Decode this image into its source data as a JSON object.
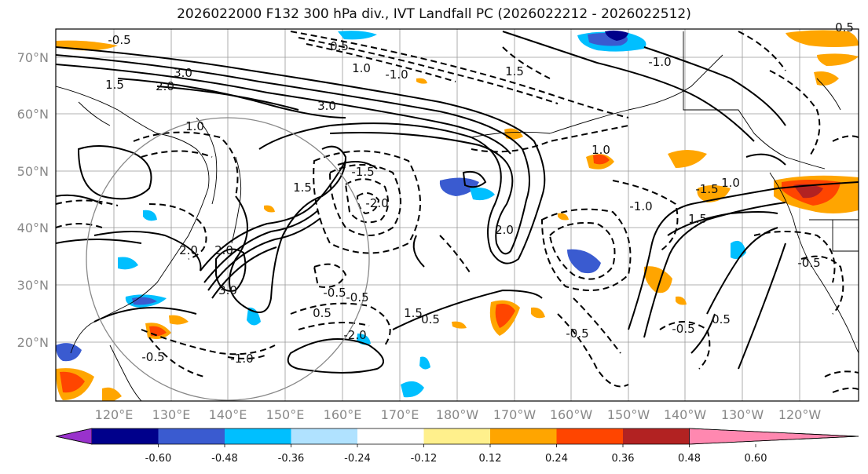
{
  "title": "2026022000 F132 300 hPa div., IVT Landfall PC (2026022212 - 2026022512)",
  "map": {
    "lat_labels": [
      "70°N",
      "60°N",
      "50°N",
      "40°N",
      "30°N",
      "20°N"
    ],
    "lon_labels": [
      "120°E",
      "130°E",
      "140°E",
      "150°E",
      "160°E",
      "170°E",
      "180°W",
      "170°W",
      "160°W",
      "150°W",
      "140°W",
      "130°W",
      "120°W"
    ],
    "contour_labels": [
      "-0.5",
      "0.5",
      "1.5",
      "2.0",
      "3.0",
      "1.0",
      "-1.0",
      "1.5",
      "3.0",
      "-1.5",
      "-2.0",
      "-0.5",
      "0.5",
      "2.0",
      "-0.5",
      "-1.0",
      "1.0",
      "3.0",
      "-2.0",
      "-1.0",
      "-0.5",
      "1.5",
      "1.0",
      "-1.5",
      "1.5",
      "2.0",
      "-0.5",
      "0.5",
      "-0.5",
      "1.0",
      "2.0",
      "-1.0",
      "0.5",
      "-0.5",
      "1.5",
      "0.5"
    ]
  },
  "colorbar": {
    "colors": [
      "#9932cc",
      "#00008b",
      "#3a5bd0",
      "#00bfff",
      "#b0e2ff",
      "#ffffff",
      "#fff08c",
      "#ffa500",
      "#ff4500",
      "#b22222",
      "#ff88b0"
    ],
    "tick_labels": [
      "-0.60",
      "-0.48",
      "-0.36",
      "-0.24",
      "-0.12",
      "0.12",
      "0.24",
      "0.36",
      "0.48",
      "0.60"
    ]
  }
}
